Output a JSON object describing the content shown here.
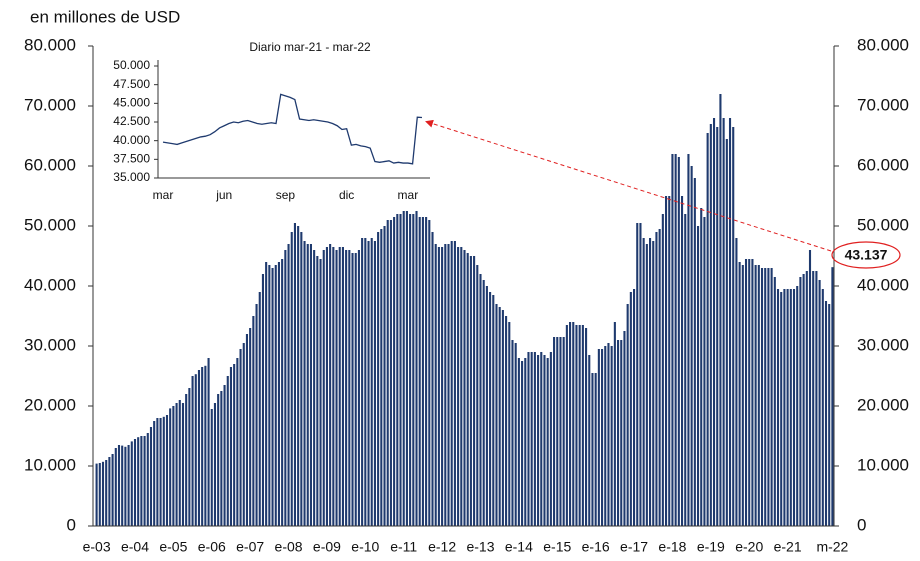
{
  "chart_data": [
    {
      "type": "bar",
      "title": "en millones de USD",
      "color": "#1f3a6e",
      "annotation": "43.137",
      "annotation_color": "#e02020",
      "categories": [
        "e-03",
        null,
        null,
        null,
        null,
        null,
        null,
        null,
        null,
        null,
        null,
        null,
        "e-04",
        null,
        null,
        null,
        null,
        null,
        null,
        null,
        null,
        null,
        null,
        null,
        "e-05",
        null,
        null,
        null,
        null,
        null,
        null,
        null,
        null,
        null,
        null,
        null,
        "e-06",
        null,
        null,
        null,
        null,
        null,
        null,
        null,
        null,
        null,
        null,
        null,
        "e-07",
        null,
        null,
        null,
        null,
        null,
        null,
        null,
        null,
        null,
        null,
        null,
        "e-08",
        null,
        null,
        null,
        null,
        null,
        null,
        null,
        null,
        null,
        null,
        null,
        "e-09",
        null,
        null,
        null,
        null,
        null,
        null,
        null,
        null,
        null,
        null,
        null,
        "e-10",
        null,
        null,
        null,
        null,
        null,
        null,
        null,
        null,
        null,
        null,
        null,
        "e-11",
        null,
        null,
        null,
        null,
        null,
        null,
        null,
        null,
        null,
        null,
        null,
        "e-12",
        null,
        null,
        null,
        null,
        null,
        null,
        null,
        null,
        null,
        null,
        null,
        "e-13",
        null,
        null,
        null,
        null,
        null,
        null,
        null,
        null,
        null,
        null,
        null,
        "e-14",
        null,
        null,
        null,
        null,
        null,
        null,
        null,
        null,
        null,
        null,
        null,
        "e-15",
        null,
        null,
        null,
        null,
        null,
        null,
        null,
        null,
        null,
        null,
        null,
        "e-16",
        null,
        null,
        null,
        null,
        null,
        null,
        null,
        null,
        null,
        null,
        null,
        "e-17",
        null,
        null,
        null,
        null,
        null,
        null,
        null,
        null,
        null,
        null,
        null,
        "e-18",
        null,
        null,
        null,
        null,
        null,
        null,
        null,
        null,
        null,
        null,
        null,
        "e-19",
        null,
        null,
        null,
        null,
        null,
        null,
        null,
        null,
        null,
        null,
        null,
        "e-20",
        null,
        null,
        null,
        null,
        null,
        null,
        null,
        null,
        null,
        null,
        null,
        "e-21",
        null,
        null,
        null,
        null,
        null,
        null,
        null,
        null,
        null,
        null,
        null,
        null,
        null,
        "m-22"
      ],
      "values": [
        10400,
        10500,
        10700,
        11000,
        11500,
        12000,
        13000,
        13500,
        13400,
        13200,
        13500,
        14100,
        14500,
        14800,
        15000,
        15000,
        15500,
        16500,
        17500,
        18000,
        18000,
        18200,
        18500,
        19600,
        20000,
        20500,
        21000,
        20500,
        22000,
        23000,
        25000,
        25300,
        26000,
        26500,
        26700,
        28000,
        19500,
        20500,
        22000,
        22500,
        23500,
        25000,
        26500,
        27000,
        28000,
        29500,
        30500,
        32000,
        33000,
        35000,
        37000,
        39000,
        42000,
        44000,
        43500,
        43000,
        43500,
        44000,
        44500,
        46000,
        47000,
        49000,
        50500,
        50000,
        49000,
        47500,
        47000,
        47000,
        46000,
        45000,
        44500,
        46000,
        46500,
        47000,
        46500,
        46000,
        46500,
        46500,
        46000,
        46000,
        45500,
        45500,
        46000,
        48000,
        48000,
        47500,
        48000,
        47500,
        49000,
        49500,
        50000,
        51000,
        51000,
        51500,
        52000,
        52000,
        52500,
        52500,
        52000,
        52000,
        52500,
        51500,
        51500,
        51500,
        51000,
        49000,
        47000,
        46500,
        46500,
        47000,
        47000,
        47500,
        47500,
        46500,
        46500,
        46000,
        45500,
        45000,
        45000,
        43500,
        42000,
        41000,
        40000,
        39000,
        38500,
        37000,
        36500,
        36000,
        35000,
        34000,
        31000,
        30500,
        28000,
        27500,
        28000,
        29000,
        29000,
        29000,
        28500,
        29000,
        28500,
        28000,
        29000,
        31500,
        31500,
        31500,
        31500,
        33500,
        34000,
        34000,
        33500,
        33500,
        33500,
        33000,
        28500,
        25500,
        25500,
        29500,
        29500,
        30000,
        30500,
        30000,
        34000,
        31000,
        31000,
        32500,
        37000,
        39000,
        39500,
        50500,
        50500,
        48000,
        47000,
        48000,
        47500,
        49000,
        49500,
        52000,
        55000,
        55000,
        62000,
        62000,
        61500,
        55000,
        52000,
        62000,
        60000,
        58000,
        50000,
        53000,
        51500,
        65500,
        67000,
        68000,
        66500,
        72000,
        68000,
        64500,
        68000,
        66500,
        48000,
        44000,
        43500,
        44500,
        44500,
        44500,
        43500,
        43500,
        43000,
        43000,
        43000,
        43000,
        41500,
        39500,
        39000,
        39500,
        39500,
        39500,
        39500,
        40000,
        41500,
        42000,
        42500,
        46000,
        42500,
        42500,
        41000,
        39500,
        37500,
        37000,
        43137
      ],
      "ylim": [
        0,
        80000
      ],
      "yticks": [
        0,
        {
          "value": 10000,
          "label": "10.000"
        },
        {
          "value": 20000,
          "label": "20.000"
        },
        {
          "value": 30000,
          "label": "30.000"
        },
        {
          "value": 40000,
          "label": "40.000"
        },
        {
          "value": 50000,
          "label": "50.000"
        },
        {
          "value": 60000,
          "label": "60.000"
        },
        {
          "value": 70000,
          "label": "70.000"
        },
        {
          "value": 80000,
          "label": "80.000"
        }
      ]
    },
    {
      "type": "line",
      "title": "Diario mar-21 - mar-22",
      "color": "#1f3a6e",
      "categories": [
        "mar",
        null,
        null,
        null,
        null,
        null,
        null,
        null,
        null,
        null,
        null,
        null,
        null,
        "jun",
        null,
        null,
        null,
        null,
        null,
        null,
        null,
        null,
        null,
        null,
        null,
        null,
        "sep",
        null,
        null,
        null,
        null,
        null,
        null,
        null,
        null,
        null,
        null,
        null,
        null,
        "dic",
        null,
        null,
        null,
        null,
        null,
        null,
        null,
        null,
        null,
        null,
        null,
        null,
        "mar",
        null,
        null,
        null
      ],
      "values": [
        39800,
        39700,
        39600,
        39500,
        39700,
        39900,
        40100,
        40300,
        40500,
        40600,
        40800,
        41200,
        41700,
        42000,
        42300,
        42500,
        42400,
        42600,
        42700,
        42500,
        42300,
        42200,
        42300,
        42400,
        42300,
        46200,
        46000,
        45800,
        45500,
        42900,
        42800,
        42700,
        42800,
        42700,
        42600,
        42500,
        42300,
        42000,
        41500,
        41600,
        39400,
        39500,
        39300,
        39200,
        39000,
        37200,
        37100,
        37200,
        37300,
        37000,
        37100,
        37000,
        37000,
        36900,
        43137,
        43100
      ],
      "ylim": [
        35000,
        50000
      ],
      "yticks": [
        {
          "value": 35000,
          "label": "35.000"
        },
        {
          "value": 37500,
          "label": "37.500"
        },
        {
          "value": 40000,
          "label": "40.000"
        },
        {
          "value": 42500,
          "label": "42.500"
        },
        {
          "value": 45000,
          "label": "45.000"
        },
        {
          "value": 47500,
          "label": "47.500"
        },
        {
          "value": 50000,
          "label": "50.000"
        }
      ]
    }
  ]
}
